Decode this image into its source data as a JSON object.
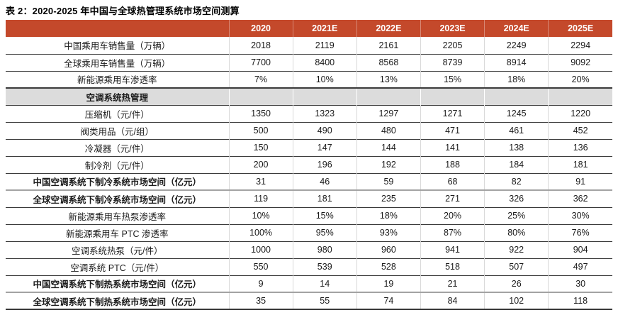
{
  "title": "表 2：2020-2025 年中国与全球热管理系统市场空间测算",
  "colors": {
    "header_bg": "#C4492B",
    "header_text": "#FFFFFF",
    "section_row_bg": "#DCDCDC",
    "row_border": "#3A3A3A",
    "column_divider": "#D9D9D9",
    "thick_divider": "#A3A3A3"
  },
  "chart_data": {
    "type": "table",
    "title": "表 2：2020-2025 年中国与全球热管理系统市场空间测算",
    "columns": [
      "2020",
      "2021E",
      "2022E",
      "2023E",
      "2024E",
      "2025E"
    ],
    "rows": [
      {
        "label": "中国乘用车销售量（万辆）",
        "values": [
          "2018",
          "2119",
          "2161",
          "2205",
          "2249",
          "2294"
        ],
        "emphasis": "normal",
        "thick_top": false
      },
      {
        "label": "全球乘用车销售量（万辆）",
        "values": [
          "7700",
          "8400",
          "8568",
          "8739",
          "8914",
          "9092"
        ],
        "emphasis": "normal",
        "thick_top": false
      },
      {
        "label": "新能源乘用车渗透率",
        "values": [
          "7%",
          "10%",
          "13%",
          "15%",
          "18%",
          "20%"
        ],
        "emphasis": "normal",
        "thick_top": false
      },
      {
        "label": "空调系统热管理",
        "values": [
          "",
          "",
          "",
          "",
          "",
          ""
        ],
        "emphasis": "section",
        "thick_top": false
      },
      {
        "label": "压缩机（元/件）",
        "values": [
          "1350",
          "1323",
          "1297",
          "1271",
          "1245",
          "1220"
        ],
        "emphasis": "normal",
        "thick_top": false
      },
      {
        "label": "阀类用品（元/组）",
        "values": [
          "500",
          "490",
          "480",
          "471",
          "461",
          "452"
        ],
        "emphasis": "normal",
        "thick_top": false
      },
      {
        "label": "冷凝器（元/件）",
        "values": [
          "150",
          "147",
          "144",
          "141",
          "138",
          "136"
        ],
        "emphasis": "normal",
        "thick_top": false
      },
      {
        "label": "制冷剂（元/件）",
        "values": [
          "200",
          "196",
          "192",
          "188",
          "184",
          "181"
        ],
        "emphasis": "normal",
        "thick_top": false
      },
      {
        "label": "中国空调系统下制冷系统市场空间（亿元）",
        "values": [
          "31",
          "46",
          "59",
          "68",
          "82",
          "91"
        ],
        "emphasis": "bold",
        "thick_top": false
      },
      {
        "label": "全球空调系统下制冷系统市场空间（亿元）",
        "values": [
          "119",
          "181",
          "235",
          "271",
          "326",
          "362"
        ],
        "emphasis": "bold",
        "thick_top": true
      },
      {
        "label": "新能源乘用车热泵渗透率",
        "values": [
          "10%",
          "15%",
          "18%",
          "20%",
          "25%",
          "30%"
        ],
        "emphasis": "normal",
        "thick_top": false
      },
      {
        "label": "新能源乘用车 PTC 渗透率",
        "values": [
          "100%",
          "95%",
          "93%",
          "87%",
          "80%",
          "76%"
        ],
        "emphasis": "normal",
        "thick_top": false
      },
      {
        "label": "空调系统热泵（元/件）",
        "values": [
          "1000",
          "980",
          "960",
          "941",
          "922",
          "904"
        ],
        "emphasis": "normal",
        "thick_top": false
      },
      {
        "label": "空调系统 PTC（元/件）",
        "values": [
          "550",
          "539",
          "528",
          "518",
          "507",
          "497"
        ],
        "emphasis": "normal",
        "thick_top": false
      },
      {
        "label": "中国空调系统下制热系统市场空间（亿元）",
        "values": [
          "9",
          "14",
          "19",
          "21",
          "26",
          "30"
        ],
        "emphasis": "bold",
        "thick_top": false
      },
      {
        "label": "全球空调系统下制热系统市场空间（亿元）",
        "values": [
          "35",
          "55",
          "74",
          "84",
          "102",
          "118"
        ],
        "emphasis": "bold",
        "thick_top": true
      }
    ]
  }
}
